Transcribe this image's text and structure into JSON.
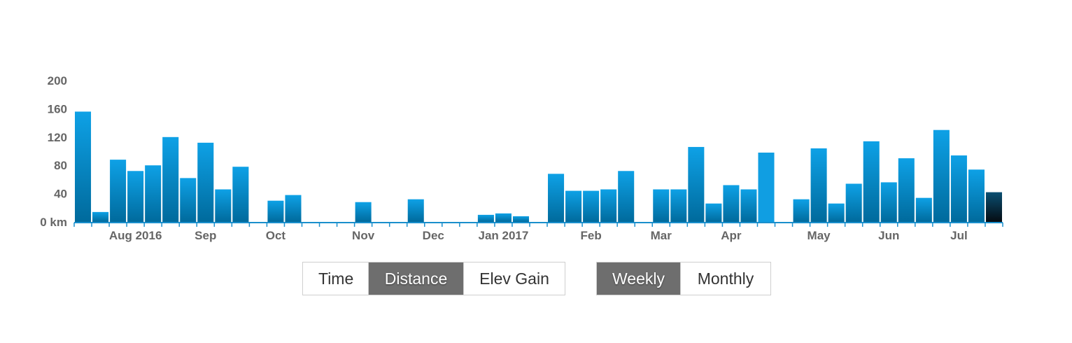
{
  "chart_data": {
    "type": "bar",
    "unit": "km",
    "ylim": [
      0,
      200
    ],
    "y_ticks": [
      "200",
      "160",
      "120",
      "80",
      "40",
      "0 km"
    ],
    "x": [
      "2016-07-18",
      "2016-07-25",
      "2016-08-01",
      "2016-08-08",
      "2016-08-15",
      "2016-08-22",
      "2016-08-29",
      "2016-09-05",
      "2016-09-12",
      "2016-09-19",
      "2016-09-26",
      "2016-10-03",
      "2016-10-10",
      "2016-10-17",
      "2016-10-24",
      "2016-10-31",
      "2016-11-07",
      "2016-11-14",
      "2016-11-21",
      "2016-11-28",
      "2016-12-05",
      "2016-12-12",
      "2016-12-19",
      "2016-12-26",
      "2017-01-02",
      "2017-01-09",
      "2017-01-16",
      "2017-01-23",
      "2017-01-30",
      "2017-02-06",
      "2017-02-13",
      "2017-02-20",
      "2017-02-27",
      "2017-03-06",
      "2017-03-13",
      "2017-03-20",
      "2017-03-27",
      "2017-04-03",
      "2017-04-10",
      "2017-04-17",
      "2017-04-24",
      "2017-05-01",
      "2017-05-08",
      "2017-05-15",
      "2017-05-22",
      "2017-05-29",
      "2017-06-05",
      "2017-06-12",
      "2017-06-19",
      "2017-06-26",
      "2017-07-03",
      "2017-07-10",
      "2017-07-17"
    ],
    "values": [
      156,
      14,
      88,
      72,
      80,
      120,
      62,
      112,
      46,
      78,
      0,
      30,
      38,
      0,
      0,
      0,
      28,
      0,
      0,
      32,
      0,
      0,
      0,
      10,
      12,
      8,
      0,
      68,
      44,
      44,
      46,
      72,
      0,
      46,
      46,
      106,
      26,
      52,
      46,
      98,
      0,
      32,
      104,
      26,
      54,
      114,
      56,
      90,
      34,
      130,
      94,
      74,
      42
    ],
    "x_tick_labels": [
      {
        "label": "Aug 2016",
        "index": 3
      },
      {
        "label": "Sep",
        "index": 7
      },
      {
        "label": "Oct",
        "index": 11
      },
      {
        "label": "Nov",
        "index": 16
      },
      {
        "label": "Dec",
        "index": 20
      },
      {
        "label": "Jan 2017",
        "index": 24
      },
      {
        "label": "Feb",
        "index": 29
      },
      {
        "label": "Mar",
        "index": 33
      },
      {
        "label": "Apr",
        "index": 37
      },
      {
        "label": "May",
        "index": 42
      },
      {
        "label": "Jun",
        "index": 46
      },
      {
        "label": "Jul",
        "index": 50
      }
    ],
    "highlight_index": 39,
    "current_index": 52,
    "colors": {
      "bar_top": "#0ea1e6",
      "bar_bottom": "#006a9c",
      "bar_highlight": "#109ee2",
      "current_top": "#0a4f72",
      "current_bottom": "#050c12",
      "axis": "#1a8fcc",
      "label": "#666666"
    },
    "grid": false
  },
  "controls": {
    "metric_buttons": [
      "Time",
      "Distance",
      "Elev Gain"
    ],
    "metric_active": "Distance",
    "period_buttons": [
      "Weekly",
      "Monthly"
    ],
    "period_active": "Weekly"
  }
}
